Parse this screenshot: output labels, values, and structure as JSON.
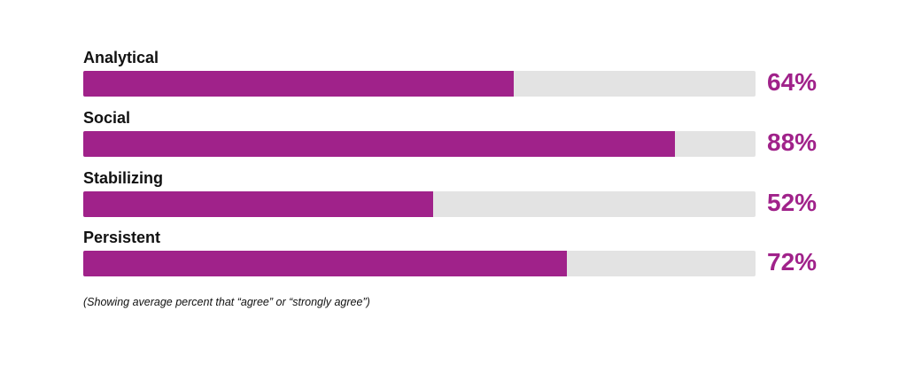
{
  "chart_data": {
    "type": "bar",
    "orientation": "horizontal",
    "categories": [
      "Analytical",
      "Social",
      "Stabilizing",
      "Persistent"
    ],
    "values": [
      64,
      88,
      52,
      72
    ],
    "value_labels": [
      "64%",
      "88%",
      "52%",
      "72%"
    ],
    "value_unit": "%",
    "xlim": [
      0,
      100
    ],
    "title": "",
    "xlabel": "",
    "ylabel": "",
    "grid": false,
    "legend": "none",
    "note": "(Showing average percent that “agree” or “strongly agree”)"
  },
  "colors": {
    "bar_fill": "#a0228a",
    "bar_track": "#e3e3e3",
    "value_text": "#a0228a",
    "label_text": "#111111"
  }
}
